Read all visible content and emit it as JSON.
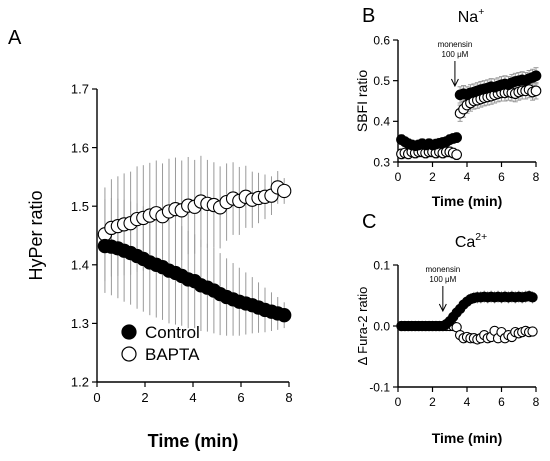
{
  "chart_data": [
    {
      "panel": "A",
      "type": "scatter",
      "xlabel": "Time (min)",
      "ylabel": "HyPer ratio",
      "xlim": [
        0,
        8
      ],
      "ylim": [
        1.2,
        1.7
      ],
      "x_ticks": [
        0,
        2,
        4,
        6,
        8
      ],
      "y_ticks": [
        1.2,
        1.3,
        1.4,
        1.5,
        1.6,
        1.7
      ],
      "y_tick_labels": [
        "1.2",
        "1.3",
        "1.4",
        "1.5",
        "1.6",
        "1.7"
      ],
      "legend_placement": "bottom-left",
      "series": [
        {
          "name": "Control",
          "marker": "filled-circle",
          "x": [
            0.33,
            0.6,
            0.87,
            1.13,
            1.4,
            1.67,
            1.93,
            2.2,
            2.47,
            2.73,
            3.0,
            3.27,
            3.53,
            3.8,
            4.07,
            4.33,
            4.6,
            4.87,
            5.13,
            5.4,
            5.67,
            5.93,
            6.2,
            6.47,
            6.73,
            7.0,
            7.27,
            7.53,
            7.8
          ],
          "values": [
            1.432,
            1.431,
            1.428,
            1.424,
            1.42,
            1.415,
            1.41,
            1.404,
            1.4,
            1.396,
            1.39,
            1.386,
            1.381,
            1.375,
            1.372,
            1.365,
            1.361,
            1.356,
            1.35,
            1.345,
            1.341,
            1.337,
            1.334,
            1.331,
            1.327,
            1.323,
            1.32,
            1.317,
            1.314
          ],
          "error": [
            0.08,
            0.083,
            0.085,
            0.087,
            0.088,
            0.09,
            0.09,
            0.09,
            0.09,
            0.09,
            0.09,
            0.088,
            0.085,
            0.083,
            0.08,
            0.078,
            0.075,
            0.073,
            0.07,
            0.066,
            0.062,
            0.058,
            0.053,
            0.048,
            0.043,
            0.038,
            0.033,
            0.028,
            0.022
          ]
        },
        {
          "name": "BAPTA",
          "marker": "open-circle",
          "x": [
            0.33,
            0.6,
            0.87,
            1.13,
            1.4,
            1.67,
            1.93,
            2.2,
            2.47,
            2.73,
            3.0,
            3.27,
            3.53,
            3.8,
            4.07,
            4.33,
            4.6,
            4.87,
            5.13,
            5.4,
            5.67,
            5.93,
            6.2,
            6.47,
            6.73,
            7.0,
            7.27,
            7.53,
            7.8
          ],
          "values": [
            1.452,
            1.463,
            1.466,
            1.469,
            1.471,
            1.478,
            1.48,
            1.484,
            1.488,
            1.483,
            1.491,
            1.495,
            1.493,
            1.501,
            1.499,
            1.508,
            1.504,
            1.502,
            1.498,
            1.507,
            1.513,
            1.509,
            1.516,
            1.511,
            1.514,
            1.516,
            1.518,
            1.532,
            1.526
          ],
          "error": [
            0.08,
            0.083,
            0.085,
            0.087,
            0.088,
            0.09,
            0.09,
            0.09,
            0.09,
            0.09,
            0.09,
            0.088,
            0.085,
            0.083,
            0.08,
            0.078,
            0.075,
            0.073,
            0.07,
            0.066,
            0.062,
            0.058,
            0.053,
            0.048,
            0.043,
            0.038,
            0.033,
            0.028,
            0.022
          ]
        }
      ]
    },
    {
      "panel": "B",
      "type": "scatter",
      "title": "Na",
      "title_superscript": "+",
      "xlabel": "Time (min)",
      "ylabel": "SBFI ratio",
      "xlim": [
        0,
        8
      ],
      "ylim": [
        0.3,
        0.6
      ],
      "x_ticks": [
        0,
        2,
        4,
        6,
        8
      ],
      "y_ticks": [
        0.3,
        0.4,
        0.5,
        0.6
      ],
      "y_tick_labels": [
        "0.3",
        "0.4",
        "0.5",
        "0.6"
      ],
      "annotation": {
        "line1": "monensin",
        "line2": "100 μM",
        "x": 3.3
      },
      "series": [
        {
          "name": "",
          "marker": "filled-circle",
          "x": [
            0.2,
            0.4,
            0.6,
            0.8,
            1.0,
            1.2,
            1.4,
            1.6,
            1.8,
            2.0,
            2.2,
            2.4,
            2.6,
            2.8,
            3.0,
            3.2,
            3.4,
            3.6,
            3.8,
            4.0,
            4.2,
            4.4,
            4.6,
            4.8,
            5.0,
            5.2,
            5.4,
            5.6,
            5.8,
            6.0,
            6.2,
            6.4,
            6.6,
            6.8,
            7.0,
            7.2,
            7.4,
            7.6,
            7.8,
            8.0
          ],
          "values": [
            0.355,
            0.35,
            0.345,
            0.342,
            0.34,
            0.342,
            0.345,
            0.342,
            0.345,
            0.342,
            0.344,
            0.346,
            0.348,
            0.35,
            0.355,
            0.358,
            0.36,
            0.465,
            0.468,
            0.465,
            0.47,
            0.472,
            0.475,
            0.478,
            0.48,
            0.482,
            0.485,
            0.484,
            0.487,
            0.49,
            0.492,
            0.49,
            0.495,
            0.498,
            0.5,
            0.502,
            0.5,
            0.505,
            0.508,
            0.512
          ],
          "error": [
            0.012,
            0.012,
            0.012,
            0.012,
            0.012,
            0.012,
            0.012,
            0.012,
            0.012,
            0.012,
            0.012,
            0.012,
            0.012,
            0.012,
            0.012,
            0.012,
            0.012,
            0.02,
            0.02,
            0.02,
            0.02,
            0.02,
            0.02,
            0.02,
            0.02,
            0.02,
            0.02,
            0.02,
            0.02,
            0.02,
            0.02,
            0.02,
            0.02,
            0.02,
            0.02,
            0.02,
            0.02,
            0.02,
            0.02,
            0.02
          ]
        },
        {
          "name": "",
          "marker": "open-circle",
          "x": [
            0.2,
            0.4,
            0.6,
            0.8,
            1.0,
            1.2,
            1.4,
            1.6,
            1.8,
            2.0,
            2.2,
            2.4,
            2.6,
            2.8,
            3.0,
            3.2,
            3.4,
            3.6,
            3.8,
            4.0,
            4.2,
            4.4,
            4.6,
            4.8,
            5.0,
            5.2,
            5.4,
            5.6,
            5.8,
            6.0,
            6.2,
            6.4,
            6.6,
            6.8,
            7.0,
            7.2,
            7.4,
            7.6,
            7.8,
            8.0
          ],
          "values": [
            0.32,
            0.322,
            0.32,
            0.325,
            0.322,
            0.325,
            0.325,
            0.322,
            0.325,
            0.325,
            0.322,
            0.325,
            0.322,
            0.325,
            0.325,
            0.322,
            0.318,
            0.42,
            0.43,
            0.44,
            0.445,
            0.45,
            0.452,
            0.455,
            0.458,
            0.46,
            0.462,
            0.465,
            0.468,
            0.47,
            0.47,
            0.472,
            0.47,
            0.468,
            0.472,
            0.475,
            0.475,
            0.478,
            0.472,
            0.475
          ],
          "error": [
            0.012,
            0.012,
            0.012,
            0.012,
            0.012,
            0.012,
            0.012,
            0.012,
            0.012,
            0.012,
            0.012,
            0.012,
            0.012,
            0.012,
            0.012,
            0.012,
            0.012,
            0.02,
            0.02,
            0.02,
            0.02,
            0.02,
            0.02,
            0.02,
            0.02,
            0.02,
            0.02,
            0.02,
            0.02,
            0.02,
            0.02,
            0.02,
            0.02,
            0.02,
            0.02,
            0.02,
            0.02,
            0.02,
            0.02,
            0.02
          ]
        }
      ]
    },
    {
      "panel": "C",
      "type": "scatter",
      "title": "Ca",
      "title_superscript": "2+",
      "xlabel": "Time (min)",
      "ylabel": "Δ Fura-2 ratio",
      "xlim": [
        0,
        8
      ],
      "ylim": [
        -0.1,
        0.1
      ],
      "x_ticks": [
        0,
        2,
        4,
        6,
        8
      ],
      "y_ticks": [
        -0.1,
        0.0,
        0.1
      ],
      "y_tick_labels": [
        "-0.1",
        "0.0",
        "0.1"
      ],
      "annotation": {
        "line1": "monensin",
        "line2": "100 μM",
        "x": 2.6
      },
      "series": [
        {
          "name": "",
          "marker": "filled-circle",
          "x": [
            0.2,
            0.4,
            0.6,
            0.8,
            1.0,
            1.2,
            1.4,
            1.6,
            1.8,
            2.0,
            2.2,
            2.4,
            2.6,
            2.8,
            3.0,
            3.2,
            3.4,
            3.6,
            3.8,
            4.0,
            4.2,
            4.4,
            4.6,
            4.8,
            5.0,
            5.2,
            5.4,
            5.6,
            5.8,
            6.0,
            6.2,
            6.4,
            6.6,
            6.8,
            7.0,
            7.2,
            7.4,
            7.6,
            7.8
          ],
          "values": [
            0,
            0,
            0,
            0,
            0,
            0,
            0,
            0,
            0,
            0,
            0,
            0,
            0,
            0.003,
            0.008,
            0.015,
            0.022,
            0.028,
            0.035,
            0.04,
            0.044,
            0.046,
            0.047,
            0.047,
            0.048,
            0.047,
            0.048,
            0.047,
            0.048,
            0.047,
            0.048,
            0.047,
            0.048,
            0.047,
            0.048,
            0.047,
            0.048,
            0.049,
            0.047
          ],
          "error": [
            0.003,
            0.003,
            0.003,
            0.003,
            0.003,
            0.003,
            0.003,
            0.003,
            0.003,
            0.003,
            0.003,
            0.003,
            0.003,
            0.004,
            0.006,
            0.007,
            0.008,
            0.009,
            0.01,
            0.01,
            0.01,
            0.01,
            0.01,
            0.01,
            0.01,
            0.01,
            0.01,
            0.01,
            0.01,
            0.01,
            0.01,
            0.01,
            0.01,
            0.01,
            0.01,
            0.01,
            0.01,
            0.01,
            0.01
          ]
        },
        {
          "name": "",
          "marker": "open-circle",
          "x": [
            0.2,
            0.4,
            0.6,
            0.8,
            1.0,
            1.2,
            1.4,
            1.6,
            1.8,
            2.0,
            2.2,
            2.4,
            2.6,
            2.8,
            3.0,
            3.2,
            3.4,
            3.6,
            3.8,
            4.0,
            4.2,
            4.4,
            4.6,
            4.8,
            5.0,
            5.2,
            5.4,
            5.6,
            5.8,
            6.0,
            6.2,
            6.4,
            6.6,
            6.8,
            7.0,
            7.2,
            7.4,
            7.6,
            7.8
          ],
          "values": [
            0,
            0,
            0,
            0,
            0,
            0,
            0,
            0,
            0,
            0,
            0,
            0,
            0,
            0,
            0,
            0,
            -0.002,
            -0.015,
            -0.02,
            -0.018,
            -0.02,
            -0.02,
            -0.022,
            -0.02,
            -0.015,
            -0.02,
            -0.018,
            -0.008,
            -0.02,
            -0.01,
            -0.02,
            -0.015,
            -0.018,
            -0.01,
            -0.012,
            -0.01,
            -0.008,
            -0.01,
            -0.009
          ],
          "error": [
            0.003,
            0.003,
            0.003,
            0.003,
            0.003,
            0.003,
            0.003,
            0.003,
            0.003,
            0.003,
            0.003,
            0.003,
            0.003,
            0.003,
            0.003,
            0.003,
            0.003,
            0.003,
            0.003,
            0.003,
            0.003,
            0.003,
            0.003,
            0.003,
            0.003,
            0.003,
            0.003,
            0.003,
            0.003,
            0.003,
            0.003,
            0.003,
            0.003,
            0.003,
            0.003,
            0.003,
            0.003,
            0.003,
            0.003
          ]
        }
      ]
    }
  ]
}
